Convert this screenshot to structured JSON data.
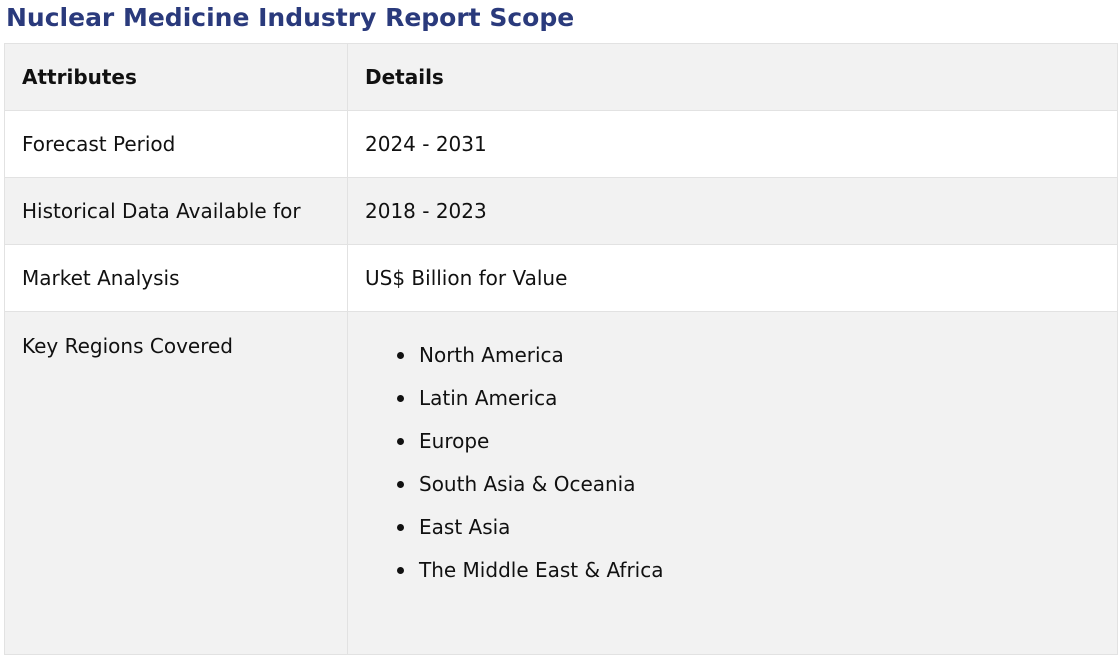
{
  "page": {
    "title": "Nuclear Medicine Industry Report Scope"
  },
  "table": {
    "headers": [
      "Attributes",
      "Details"
    ],
    "rows": [
      {
        "attribute": "Forecast Period",
        "detail": "2024 - 2031"
      },
      {
        "attribute": "Historical Data Available for",
        "detail": "2018 - 2023"
      },
      {
        "attribute": "Market Analysis",
        "detail": "US$ Billion for Value"
      }
    ],
    "regions": {
      "attribute": "Key Regions Covered",
      "items": [
        "North America",
        "Latin America",
        "Europe",
        "South Asia & Oceania",
        "East Asia",
        "The Middle East & Africa"
      ]
    }
  },
  "colors": {
    "title": "#2a3a7c",
    "row_alt": "#f2f2f2",
    "border": "#e2e2e2"
  }
}
